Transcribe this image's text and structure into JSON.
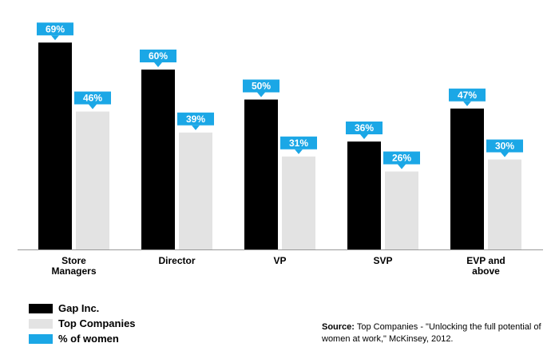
{
  "chart_data": {
    "type": "bar",
    "categories": [
      [
        "Store",
        "Managers"
      ],
      [
        "Director"
      ],
      [
        "VP"
      ],
      [
        "SVP"
      ],
      [
        "EVP and",
        "above"
      ]
    ],
    "series": [
      {
        "name": "Gap Inc.",
        "values": [
          69,
          60,
          50,
          36,
          47
        ],
        "labels": [
          "69%",
          "60%",
          "50%",
          "36%",
          "47%"
        ],
        "color": "#000000"
      },
      {
        "name": "Top Companies",
        "values": [
          46,
          39,
          31,
          26,
          30
        ],
        "labels": [
          "46%",
          "39%",
          "31%",
          "26%",
          "30%"
        ],
        "color": "#e3e3e3"
      }
    ],
    "ylim": [
      0,
      72
    ],
    "grid": false,
    "data_label_color": "#1ba7e6",
    "legend": [
      {
        "label": "Gap Inc.",
        "color": "#000000"
      },
      {
        "label": "Top Companies",
        "color": "#e3e3e3"
      },
      {
        "label": "% of women",
        "color": "#1ba7e6"
      }
    ],
    "legend_position": "bottom-left"
  },
  "source": {
    "prefix": "Source:",
    "text": "Top Companies - \"Unlocking the full potential of women at work,\" McKinsey, 2012."
  }
}
